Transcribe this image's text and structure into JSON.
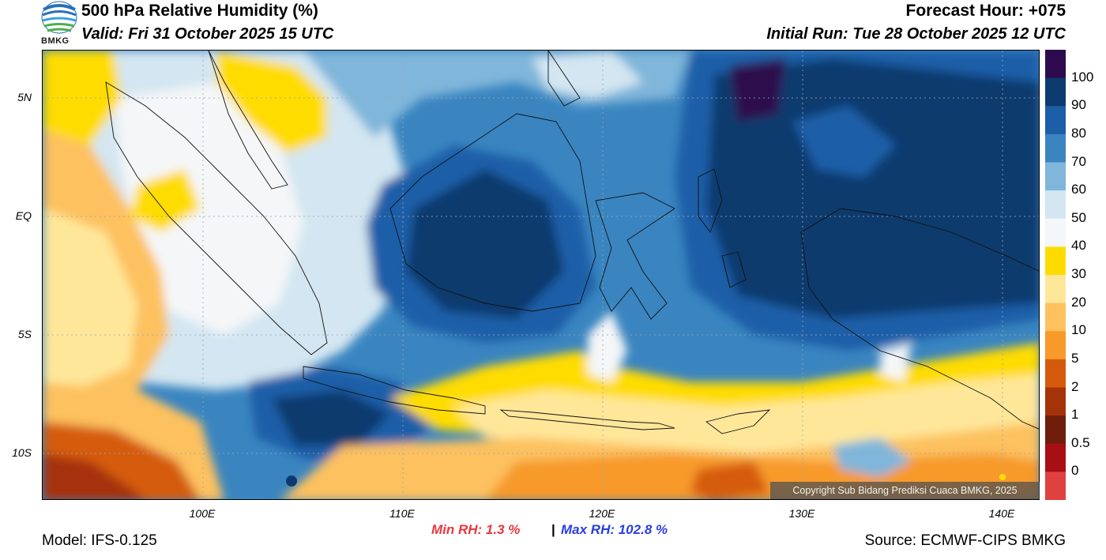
{
  "header": {
    "title": "500 hPa Relative Humidity (%)",
    "valid": "Valid: Fri 31 October 2025 15 UTC",
    "forecast_hour": "Forecast Hour: +075",
    "initial_run": "Initial Run: Tue 28 October 2025 12 UTC",
    "logo_text": "BMKG"
  },
  "axes": {
    "latitudes": [
      "5N",
      "EQ",
      "5S",
      "10S"
    ],
    "longitudes": [
      "100E",
      "110E",
      "120E",
      "130E",
      "140E"
    ]
  },
  "colorbar": {
    "labels": [
      "100",
      "90",
      "80",
      "70",
      "60",
      "50",
      "40",
      "30",
      "20",
      "10",
      "5",
      "2",
      "1",
      "0.5",
      "0"
    ],
    "colors": [
      "#2d0b4e",
      "#0d3a6e",
      "#1c5ea8",
      "#3a85c0",
      "#7fb6da",
      "#d3e6f1",
      "#f4f6f8",
      "#ffdc00",
      "#ffe79a",
      "#fdc15e",
      "#f79a2a",
      "#d55b0c",
      "#a5330a",
      "#6e1e0a",
      "#a80f14",
      "#e04040"
    ]
  },
  "stats": {
    "min_rh": "Min RH:   1.3 %",
    "separator": "|",
    "max_rh": "Max RH: 102.8 %"
  },
  "footer": {
    "model": "Model: IFS-0.125",
    "source": "Source: ECMWF-CIPS BMKG",
    "copyright": "Copyright Sub Bidang Prediksi Cuaca BMKG, 2025"
  }
}
